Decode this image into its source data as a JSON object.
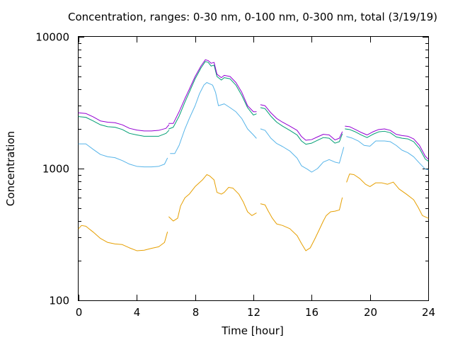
{
  "chart_data": {
    "type": "line",
    "title": "Concentration, ranges: 0-30 nm, 0-100 nm, 0-300 nm, total (3/19/19)",
    "xlabel": "Time [hour]",
    "ylabel": "Concentration",
    "x_ticks": [
      0,
      4,
      8,
      12,
      16,
      20,
      24
    ],
    "y_ticks": [
      100,
      1000,
      10000
    ],
    "xlim": [
      0,
      24
    ],
    "ylim": [
      100,
      10000
    ],
    "y_scale": "log",
    "grid": false,
    "legend": "none",
    "series": [
      {
        "color": "#e69f00",
        "segments": [
          [
            [
              0.0,
              350
            ],
            [
              0.2,
              370
            ],
            [
              0.5,
              365
            ],
            [
              1.0,
              330
            ],
            [
              1.5,
              295
            ],
            [
              2.0,
              275
            ],
            [
              2.5,
              268
            ],
            [
              3.0,
              265
            ],
            [
              3.5,
              250
            ],
            [
              4.0,
              238
            ],
            [
              4.5,
              240
            ],
            [
              5.0,
              248
            ],
            [
              5.5,
              255
            ],
            [
              5.9,
              275
            ],
            [
              6.1,
              330
            ]
          ],
          [
            [
              6.2,
              430
            ],
            [
              6.5,
              400
            ],
            [
              6.8,
              420
            ],
            [
              7.0,
              520
            ],
            [
              7.3,
              600
            ],
            [
              7.6,
              640
            ],
            [
              8.0,
              730
            ],
            [
              8.5,
              820
            ],
            [
              8.8,
              900
            ],
            [
              9.0,
              880
            ],
            [
              9.3,
              820
            ],
            [
              9.5,
              660
            ],
            [
              9.8,
              640
            ],
            [
              10.0,
              660
            ],
            [
              10.3,
              720
            ],
            [
              10.6,
              710
            ],
            [
              11.0,
              640
            ],
            [
              11.3,
              560
            ],
            [
              11.6,
              470
            ],
            [
              11.9,
              440
            ],
            [
              12.2,
              460
            ]
          ],
          [
            [
              12.5,
              540
            ],
            [
              12.8,
              530
            ],
            [
              13.0,
              480
            ],
            [
              13.3,
              420
            ],
            [
              13.6,
              380
            ],
            [
              14.0,
              370
            ],
            [
              14.5,
              350
            ],
            [
              15.0,
              310
            ],
            [
              15.3,
              270
            ],
            [
              15.6,
              238
            ],
            [
              15.9,
              250
            ],
            [
              16.2,
              290
            ],
            [
              16.5,
              340
            ],
            [
              16.8,
              400
            ],
            [
              17.0,
              440
            ],
            [
              17.3,
              470
            ],
            [
              17.6,
              475
            ],
            [
              17.9,
              485
            ],
            [
              18.1,
              600
            ]
          ],
          [
            [
              18.4,
              790
            ],
            [
              18.6,
              910
            ],
            [
              18.9,
              900
            ],
            [
              19.3,
              840
            ],
            [
              19.7,
              760
            ],
            [
              20.0,
              730
            ],
            [
              20.4,
              780
            ],
            [
              20.8,
              780
            ],
            [
              21.2,
              760
            ],
            [
              21.6,
              790
            ],
            [
              22.0,
              700
            ],
            [
              22.5,
              640
            ],
            [
              23.0,
              580
            ],
            [
              23.3,
              510
            ],
            [
              23.6,
              440
            ],
            [
              24.0,
              420
            ]
          ]
        ]
      },
      {
        "color": "#56b4e9",
        "segments": [
          [
            [
              0.0,
              1540
            ],
            [
              0.5,
              1540
            ],
            [
              1.0,
              1400
            ],
            [
              1.5,
              1280
            ],
            [
              2.0,
              1230
            ],
            [
              2.5,
              1210
            ],
            [
              3.0,
              1150
            ],
            [
              3.5,
              1080
            ],
            [
              4.0,
              1040
            ],
            [
              4.5,
              1030
            ],
            [
              5.0,
              1030
            ],
            [
              5.5,
              1040
            ],
            [
              5.9,
              1080
            ],
            [
              6.1,
              1200
            ]
          ],
          [
            [
              6.3,
              1300
            ],
            [
              6.6,
              1300
            ],
            [
              6.9,
              1500
            ],
            [
              7.3,
              2000
            ],
            [
              7.6,
              2400
            ],
            [
              8.0,
              3000
            ],
            [
              8.3,
              3700
            ],
            [
              8.6,
              4300
            ],
            [
              8.8,
              4500
            ],
            [
              9.0,
              4400
            ],
            [
              9.2,
              4300
            ],
            [
              9.4,
              3800
            ],
            [
              9.6,
              3000
            ],
            [
              10.0,
              3100
            ],
            [
              10.4,
              2900
            ],
            [
              10.8,
              2700
            ],
            [
              11.2,
              2400
            ],
            [
              11.6,
              2000
            ],
            [
              12.0,
              1800
            ],
            [
              12.2,
              1700
            ]
          ],
          [
            [
              12.5,
              2000
            ],
            [
              12.8,
              1950
            ],
            [
              13.2,
              1700
            ],
            [
              13.6,
              1550
            ],
            [
              14.0,
              1470
            ],
            [
              14.5,
              1360
            ],
            [
              15.0,
              1200
            ],
            [
              15.3,
              1050
            ],
            [
              15.7,
              990
            ],
            [
              16.0,
              940
            ],
            [
              16.4,
              1000
            ],
            [
              16.8,
              1120
            ],
            [
              17.2,
              1170
            ],
            [
              17.6,
              1120
            ],
            [
              17.9,
              1100
            ],
            [
              18.2,
              1450
            ]
          ],
          [
            [
              18.4,
              1750
            ],
            [
              18.8,
              1700
            ],
            [
              19.2,
              1620
            ],
            [
              19.6,
              1500
            ],
            [
              20.0,
              1480
            ],
            [
              20.4,
              1620
            ],
            [
              21.0,
              1620
            ],
            [
              21.4,
              1600
            ],
            [
              21.8,
              1500
            ],
            [
              22.2,
              1380
            ],
            [
              22.6,
              1320
            ],
            [
              23.0,
              1230
            ],
            [
              23.4,
              1100
            ],
            [
              23.8,
              990
            ],
            [
              24.0,
              980
            ]
          ]
        ]
      },
      {
        "color": "#009e73",
        "segments": [
          [
            [
              0.0,
              2480
            ],
            [
              0.5,
              2450
            ],
            [
              1.0,
              2300
            ],
            [
              1.5,
              2150
            ],
            [
              2.0,
              2080
            ],
            [
              2.5,
              2060
            ],
            [
              3.0,
              1980
            ],
            [
              3.5,
              1850
            ],
            [
              4.0,
              1800
            ],
            [
              4.5,
              1760
            ],
            [
              5.0,
              1760
            ],
            [
              5.5,
              1760
            ],
            [
              6.0,
              1850
            ],
            [
              6.2,
              1950
            ]
          ],
          [
            [
              6.2,
              2000
            ],
            [
              6.5,
              2060
            ],
            [
              6.9,
              2500
            ],
            [
              7.3,
              3200
            ],
            [
              7.6,
              3800
            ],
            [
              8.0,
              4800
            ],
            [
              8.4,
              5800
            ],
            [
              8.7,
              6500
            ],
            [
              8.9,
              6400
            ],
            [
              9.1,
              6000
            ],
            [
              9.3,
              6100
            ],
            [
              9.5,
              5000
            ],
            [
              9.8,
              4700
            ],
            [
              10.0,
              4900
            ],
            [
              10.4,
              4800
            ],
            [
              10.8,
              4300
            ],
            [
              11.2,
              3600
            ],
            [
              11.6,
              2900
            ],
            [
              12.0,
              2550
            ],
            [
              12.2,
              2600
            ]
          ],
          [
            [
              12.5,
              2900
            ],
            [
              12.8,
              2850
            ],
            [
              13.2,
              2500
            ],
            [
              13.6,
              2250
            ],
            [
              14.0,
              2100
            ],
            [
              14.5,
              1950
            ],
            [
              15.0,
              1800
            ],
            [
              15.3,
              1620
            ],
            [
              15.6,
              1530
            ],
            [
              16.0,
              1560
            ],
            [
              16.4,
              1640
            ],
            [
              16.8,
              1720
            ],
            [
              17.2,
              1700
            ],
            [
              17.6,
              1560
            ],
            [
              17.9,
              1600
            ],
            [
              18.1,
              1830
            ]
          ],
          [
            [
              18.3,
              2000
            ],
            [
              18.6,
              1980
            ],
            [
              19.0,
              1900
            ],
            [
              19.4,
              1800
            ],
            [
              19.8,
              1720
            ],
            [
              20.2,
              1820
            ],
            [
              20.6,
              1900
            ],
            [
              21.0,
              1920
            ],
            [
              21.4,
              1870
            ],
            [
              21.8,
              1740
            ],
            [
              22.2,
              1700
            ],
            [
              22.6,
              1680
            ],
            [
              23.0,
              1600
            ],
            [
              23.4,
              1420
            ],
            [
              23.8,
              1180
            ],
            [
              24.0,
              1140
            ]
          ]
        ]
      },
      {
        "color": "#9400d3",
        "segments": [
          [
            [
              0.0,
              2650
            ],
            [
              0.5,
              2620
            ],
            [
              1.0,
              2470
            ],
            [
              1.5,
              2300
            ],
            [
              2.0,
              2250
            ],
            [
              2.5,
              2230
            ],
            [
              3.0,
              2150
            ],
            [
              3.5,
              2020
            ],
            [
              4.0,
              1960
            ],
            [
              4.5,
              1930
            ],
            [
              5.0,
              1930
            ],
            [
              5.5,
              1950
            ],
            [
              6.0,
              2020
            ],
            [
              6.2,
              2150
            ]
          ],
          [
            [
              6.2,
              2200
            ],
            [
              6.5,
              2200
            ],
            [
              6.9,
              2700
            ],
            [
              7.3,
              3400
            ],
            [
              7.6,
              4000
            ],
            [
              8.0,
              5000
            ],
            [
              8.4,
              6000
            ],
            [
              8.7,
              6700
            ],
            [
              8.9,
              6600
            ],
            [
              9.1,
              6300
            ],
            [
              9.3,
              6400
            ],
            [
              9.5,
              5200
            ],
            [
              9.8,
              4900
            ],
            [
              10.0,
              5100
            ],
            [
              10.4,
              5000
            ],
            [
              10.8,
              4500
            ],
            [
              11.2,
              3800
            ],
            [
              11.6,
              3000
            ],
            [
              12.0,
              2700
            ],
            [
              12.2,
              2700
            ]
          ],
          [
            [
              12.5,
              3050
            ],
            [
              12.8,
              3000
            ],
            [
              13.2,
              2650
            ],
            [
              13.6,
              2400
            ],
            [
              14.0,
              2250
            ],
            [
              14.5,
              2100
            ],
            [
              15.0,
              1950
            ],
            [
              15.3,
              1750
            ],
            [
              15.6,
              1640
            ],
            [
              16.0,
              1660
            ],
            [
              16.4,
              1740
            ],
            [
              16.8,
              1820
            ],
            [
              17.2,
              1800
            ],
            [
              17.6,
              1650
            ],
            [
              17.9,
              1700
            ],
            [
              18.1,
              1900
            ]
          ],
          [
            [
              18.3,
              2100
            ],
            [
              18.6,
              2080
            ],
            [
              19.0,
              1980
            ],
            [
              19.4,
              1880
            ],
            [
              19.8,
              1800
            ],
            [
              20.2,
              1900
            ],
            [
              20.6,
              1980
            ],
            [
              21.0,
              2000
            ],
            [
              21.4,
              1950
            ],
            [
              21.8,
              1820
            ],
            [
              22.2,
              1780
            ],
            [
              22.6,
              1760
            ],
            [
              23.0,
              1680
            ],
            [
              23.4,
              1500
            ],
            [
              23.8,
              1240
            ],
            [
              24.0,
              1180
            ]
          ]
        ]
      }
    ]
  }
}
